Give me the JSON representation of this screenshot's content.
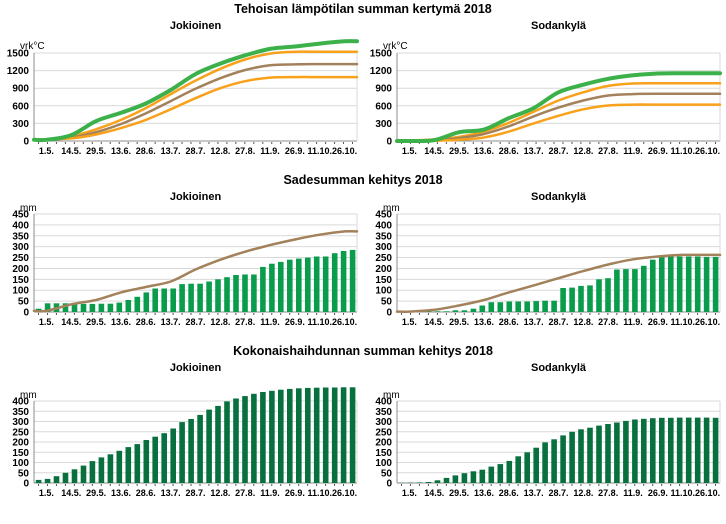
{
  "x_axis_labels": [
    "1.5.",
    "14.5.",
    "29.5.",
    "13.6.",
    "28.6.",
    "13.7.",
    "28.7.",
    "12.8.",
    "27.8.",
    "11.9.",
    "26.9.",
    "11.10.",
    "26.10."
  ],
  "colors": {
    "green_line": "#3cb14a",
    "orange_line": "#f9a11b",
    "brown_line": "#a3815a",
    "rain_bar": "#0a9c4d",
    "evaporation_bar": "#07703e",
    "gridline": "#d9d9d9",
    "axis": "#8c8c8c"
  },
  "sections": [
    {
      "title": "Tehoisan lämpötilan summan kertymä 2018"
    },
    {
      "title": "Sadesumman kehitys 2018"
    },
    {
      "title": "Kokonaishaihdunnan summan kehitys 2018"
    }
  ],
  "chart_data": [
    {
      "type": "line",
      "subtitle": "Jokioinen",
      "unit": "vrk°C",
      "ylim": [
        0,
        1750
      ],
      "yticks": [
        0,
        300,
        600,
        900,
        1200,
        1500
      ],
      "grid": true,
      "legend": "none",
      "series": [
        {
          "name": "orange-upper",
          "color": "#f9a11b",
          "width": 2.5,
          "values": [
            30,
            80,
            200,
            360,
            560,
            800,
            1030,
            1230,
            1390,
            1490,
            1520,
            1520,
            1520
          ]
        },
        {
          "name": "brown-middle",
          "color": "#a3815a",
          "width": 2.5,
          "values": [
            20,
            60,
            150,
            290,
            470,
            680,
            890,
            1070,
            1210,
            1290,
            1305,
            1310,
            1310
          ]
        },
        {
          "name": "orange-lower",
          "color": "#f9a11b",
          "width": 2.5,
          "values": [
            25,
            45,
            110,
            220,
            360,
            540,
            730,
            900,
            1020,
            1080,
            1090,
            1090,
            1090
          ]
        },
        {
          "name": "green-bold-2018",
          "color": "#3cb14a",
          "width": 4,
          "values": [
            20,
            100,
            340,
            480,
            640,
            870,
            1140,
            1320,
            1460,
            1570,
            1610,
            1660,
            1700
          ]
        }
      ]
    },
    {
      "type": "line",
      "subtitle": "Sodankylä",
      "unit": "vrk°C",
      "ylim": [
        0,
        1750
      ],
      "yticks": [
        0,
        300,
        600,
        900,
        1200,
        1500
      ],
      "grid": true,
      "legend": "none",
      "series": [
        {
          "name": "orange-upper",
          "color": "#f9a11b",
          "width": 2.5,
          "values": [
            10,
            25,
            70,
            160,
            310,
            500,
            690,
            830,
            940,
            980,
            985,
            985,
            985
          ]
        },
        {
          "name": "brown-middle",
          "color": "#a3815a",
          "width": 2.5,
          "values": [
            5,
            15,
            50,
            120,
            250,
            420,
            570,
            690,
            775,
            800,
            805,
            805,
            805
          ]
        },
        {
          "name": "orange-lower",
          "color": "#f9a11b",
          "width": 2.5,
          "values": [
            0,
            5,
            20,
            60,
            160,
            300,
            430,
            540,
            605,
            620,
            620,
            620,
            620
          ]
        },
        {
          "name": "green-bold-2018",
          "color": "#3cb14a",
          "width": 4,
          "values": [
            0,
            15,
            150,
            195,
            390,
            560,
            830,
            960,
            1060,
            1120,
            1150,
            1155,
            1155
          ]
        }
      ]
    },
    {
      "type": "bar-line",
      "subtitle": "Jokioinen",
      "unit": "mm",
      "ylim": [
        0,
        450
      ],
      "yticks": [
        0,
        50,
        100,
        150,
        200,
        250,
        300,
        350,
        400,
        450
      ],
      "grid": true,
      "legend": "none",
      "bars": {
        "name": "rain-sum-2018",
        "color": "#0a9c4d",
        "values": [
          15,
          40,
          40,
          40,
          40,
          37,
          37,
          38,
          38,
          43,
          55,
          70,
          90,
          108,
          108,
          108,
          128,
          130,
          130,
          140,
          150,
          160,
          170,
          172,
          172,
          207,
          222,
          230,
          240,
          245,
          250,
          255,
          255,
          270,
          280,
          285
        ]
      },
      "series": [
        {
          "name": "brown-average",
          "color": "#a3815a",
          "width": 2.5,
          "values": [
            5,
            35,
            55,
            90,
            115,
            140,
            195,
            240,
            277,
            307,
            333,
            355,
            370
          ]
        }
      ]
    },
    {
      "type": "bar-line",
      "subtitle": "Sodankylä",
      "unit": "mm",
      "ylim": [
        0,
        450
      ],
      "yticks": [
        0,
        50,
        100,
        150,
        200,
        250,
        300,
        350,
        400,
        450
      ],
      "grid": true,
      "legend": "none",
      "bars": {
        "name": "rain-sum-2018",
        "color": "#0a9c4d",
        "values": [
          2,
          2,
          2,
          3,
          3,
          3,
          8,
          8,
          15,
          30,
          45,
          45,
          48,
          48,
          48,
          50,
          52,
          52,
          110,
          112,
          120,
          122,
          150,
          155,
          195,
          197,
          197,
          212,
          240,
          252,
          255,
          255,
          255,
          255,
          253,
          253
        ]
      },
      "series": [
        {
          "name": "brown-average",
          "color": "#a3815a",
          "width": 2.5,
          "values": [
            2,
            10,
            30,
            55,
            90,
            122,
            155,
            188,
            218,
            242,
            255,
            262,
            262
          ]
        }
      ]
    },
    {
      "type": "bar",
      "subtitle": "Jokioinen",
      "unit": "mm",
      "ylim": [
        0,
        480
      ],
      "yticks": [
        0,
        50,
        100,
        150,
        200,
        250,
        300,
        350,
        400
      ],
      "grid": true,
      "legend": "none",
      "bars": {
        "name": "evaporation-sum-2018",
        "color": "#07703e",
        "values": [
          15,
          20,
          33,
          50,
          67,
          85,
          107,
          125,
          140,
          157,
          175,
          190,
          210,
          226,
          243,
          266,
          297,
          312,
          332,
          358,
          376,
          398,
          412,
          424,
          435,
          444,
          450,
          455,
          459,
          462,
          464,
          465,
          466,
          466,
          467,
          467
        ]
      }
    },
    {
      "type": "bar",
      "subtitle": "Sodankylä",
      "unit": "mm",
      "ylim": [
        0,
        410
      ],
      "yticks": [
        0,
        50,
        100,
        150,
        200,
        250,
        300,
        350,
        400
      ],
      "grid": true,
      "legend": "none",
      "bars": {
        "name": "evaporation-sum-2018",
        "color": "#07703e",
        "values": [
          1,
          2,
          3,
          5,
          13,
          25,
          37,
          48,
          57,
          65,
          80,
          92,
          108,
          130,
          150,
          172,
          198,
          213,
          232,
          250,
          262,
          270,
          280,
          288,
          295,
          303,
          310,
          313,
          316,
          318,
          318,
          319,
          319,
          319,
          319,
          318
        ]
      }
    }
  ]
}
